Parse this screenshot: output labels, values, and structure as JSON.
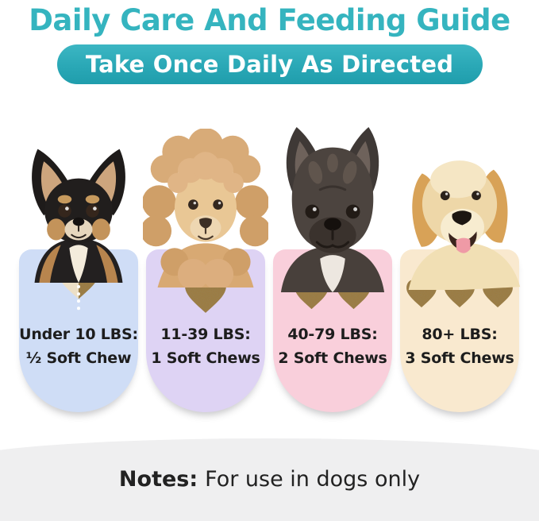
{
  "header": {
    "title": "Daily Care And Feeding Guide",
    "subtitle": "Take Once Daily As Directed"
  },
  "columns": [
    {
      "dog": "chihuahua",
      "weight_label": "Under 10 LBS:",
      "dose_label": "½ Soft Chew",
      "chews": 0.5,
      "card_color": "#cfddf6"
    },
    {
      "dog": "poodle",
      "weight_label": "11-39 LBS:",
      "dose_label": "1 Soft Chews",
      "chews": 1,
      "card_color": "#ded3f4"
    },
    {
      "dog": "french-bulldog",
      "weight_label": "40-79 LBS:",
      "dose_label": "2 Soft Chews",
      "chews": 2,
      "card_color": "#f9cfdb"
    },
    {
      "dog": "golden-retriever",
      "weight_label": "80+ LBS:",
      "dose_label": "3 Soft Chews",
      "chews": 3,
      "card_color": "#f9e9cf"
    }
  ],
  "footer": {
    "notes_label": "Notes:",
    "notes_text": "For use in dogs only"
  },
  "colors": {
    "title_teal": "#35b4bf",
    "banner_teal": "#2aa8b6",
    "chew_brown": "#9c7c42",
    "chew_beige": "#ecdfc6",
    "footer_gray": "#efeff0",
    "text_dark": "#1d1d1d"
  }
}
